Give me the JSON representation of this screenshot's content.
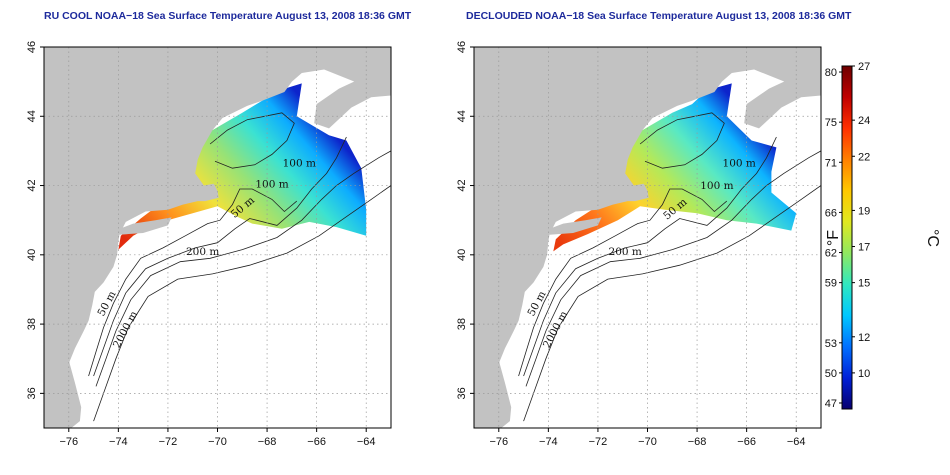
{
  "maps": [
    {
      "id": "ru-cool",
      "title": "RU COOL NOAA−18 Sea Surface Temperature August 13, 2008 18:36 GMT",
      "contour_labels": [
        {
          "text": "100 m",
          "lon": -66.7,
          "lat": 42.55,
          "rot": 0
        },
        {
          "text": "100 m",
          "lon": -67.8,
          "lat": 41.95,
          "rot": 0
        },
        {
          "text": "50 m",
          "lon": -68.9,
          "lat": 41.3,
          "rot": -40
        },
        {
          "text": "200 m",
          "lon": -70.6,
          "lat": 40.0,
          "rot": 0
        },
        {
          "text": "50 m",
          "lon": -74.35,
          "lat": 38.55,
          "rot": -62
        },
        {
          "text": "2000 m",
          "lon": -73.6,
          "lat": 37.8,
          "rot": -62
        }
      ]
    },
    {
      "id": "declouded",
      "title": "DECLOUDED NOAA−18 Sea Surface Temperature August 13, 2008 18:36 GMT",
      "contour_labels": [
        {
          "text": "100 m",
          "lon": -66.3,
          "lat": 42.55,
          "rot": 0
        },
        {
          "text": "100 m",
          "lon": -67.2,
          "lat": 41.9,
          "rot": 0
        },
        {
          "text": "50 m",
          "lon": -68.8,
          "lat": 41.25,
          "rot": -40
        },
        {
          "text": "200 m",
          "lon": -70.9,
          "lat": 40.0,
          "rot": 0
        },
        {
          "text": "50 m",
          "lon": -74.35,
          "lat": 38.55,
          "rot": -62
        },
        {
          "text": "2000 m",
          "lon": -73.6,
          "lat": 37.8,
          "rot": -62
        }
      ]
    }
  ],
  "axes": {
    "lon_min": -77,
    "lon_max": -63,
    "lat_min": 35,
    "lat_max": 46,
    "lon_ticks": [
      -76,
      -74,
      -72,
      -70,
      -68,
      -66,
      -64
    ],
    "lat_ticks": [
      36,
      38,
      40,
      42,
      44,
      46
    ]
  },
  "colorbar": {
    "celsius_min": 8,
    "celsius_max": 27,
    "fahrenheit_ticks": [
      47,
      50,
      53,
      59,
      62,
      66,
      71,
      75,
      80
    ],
    "celsius_ticks": [
      10,
      12,
      15,
      17,
      19,
      22,
      24,
      27
    ],
    "fahrenheit_unit": "°F",
    "celsius_unit": "°C",
    "colors": [
      "#08006e",
      "#0020d8",
      "#0070ff",
      "#00c8ff",
      "#30e8c0",
      "#90e860",
      "#e0e820",
      "#ffc800",
      "#ff8000",
      "#ff3000",
      "#c00000",
      "#6e0000"
    ]
  },
  "colors": {
    "land": "#c2c2c2",
    "ocean": "#ffffff",
    "contour": "#222222",
    "grid": "#9a9a9a",
    "title": "#1d2a9c"
  }
}
